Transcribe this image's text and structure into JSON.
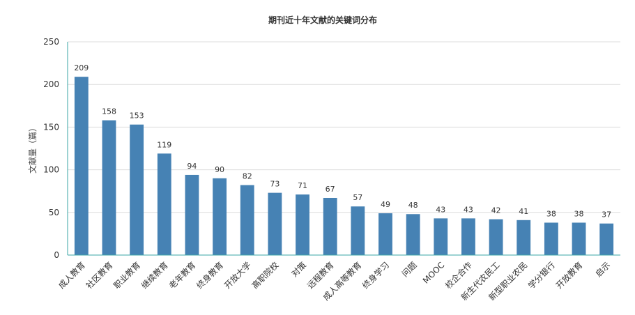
{
  "chart_data": {
    "type": "bar",
    "title": "期刊近十年文献的关键词分布",
    "ylabel": "文献量（篇）",
    "xlabel": "",
    "ylim": [
      0,
      250
    ],
    "yticks": [
      0,
      50,
      100,
      150,
      200,
      250
    ],
    "grid": true,
    "categories": [
      "成人教育",
      "社区教育",
      "职业教育",
      "继续教育",
      "老年教育",
      "终身教育",
      "开放大学",
      "高职院校",
      "对策",
      "远程教育",
      "成人高等教育",
      "终身学习",
      "问题",
      "MOOC",
      "校企合作",
      "新生代农民工",
      "新型职业农民",
      "学分银行",
      "开放教育",
      "启示"
    ],
    "values": [
      209,
      158,
      153,
      119,
      94,
      90,
      82,
      73,
      71,
      67,
      57,
      49,
      48,
      43,
      43,
      42,
      41,
      38,
      38,
      37
    ],
    "colors": {
      "bar": "#4682b4",
      "axis": "#3aa5a5",
      "grid": "#dcdcdc",
      "text": "#333333",
      "label": "#444444"
    }
  }
}
